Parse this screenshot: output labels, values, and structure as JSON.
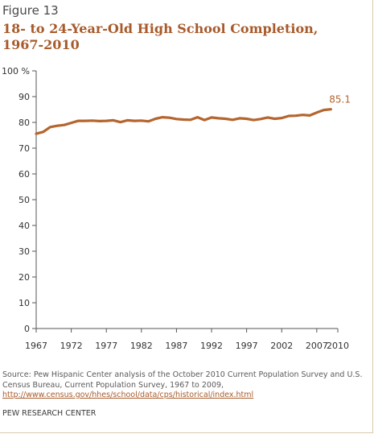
{
  "figure_label": "Figure 13",
  "title": "18- to 24-Year-Old High School Completion, 1967-2010",
  "chart_data": {
    "type": "line",
    "ylim": [
      0,
      100
    ],
    "y_ticks": [
      0,
      10,
      20,
      30,
      40,
      50,
      60,
      70,
      80,
      90,
      100
    ],
    "y_tick_labels": [
      "0",
      "10",
      "20",
      "30",
      "40",
      "50",
      "60",
      "70",
      "80",
      "90",
      "100 %"
    ],
    "x_tick_labels": [
      "1967",
      "1972",
      "1977",
      "1982",
      "1987",
      "1992",
      "1997",
      "2002",
      "2007",
      "2010"
    ],
    "x_tick_values": [
      1967,
      1972,
      1977,
      1982,
      1987,
      1992,
      1997,
      2002,
      2007,
      2010
    ],
    "xlim": [
      1967,
      2010
    ],
    "series": [
      {
        "color": "#b5652e",
        "x": [
          1967,
          1968,
          1969,
          1970,
          1971,
          1972,
          1973,
          1974,
          1975,
          1976,
          1977,
          1978,
          1979,
          1980,
          1981,
          1982,
          1983,
          1984,
          1985,
          1986,
          1987,
          1988,
          1989,
          1990,
          1991,
          1992,
          1993,
          1994,
          1995,
          1996,
          1997,
          1998,
          1999,
          2000,
          2001,
          2002,
          2003,
          2004,
          2005,
          2006,
          2007,
          2008,
          2009
        ],
        "values": [
          75.6,
          76.3,
          78.2,
          78.7,
          79.0,
          79.8,
          80.6,
          80.6,
          80.7,
          80.5,
          80.6,
          80.8,
          80.1,
          80.8,
          80.6,
          80.7,
          80.4,
          81.4,
          82.0,
          81.8,
          81.3,
          81.1,
          81.0,
          82.0,
          80.9,
          81.9,
          81.6,
          81.4,
          81.0,
          81.6,
          81.4,
          80.9,
          81.3,
          81.9,
          81.4,
          81.7,
          82.5,
          82.6,
          82.9,
          82.7,
          83.8,
          84.8,
          85.1
        ]
      }
    ],
    "annotations": [
      {
        "text": "85.1",
        "x": 2009,
        "y": 85.1
      }
    ],
    "grid": false
  },
  "footer": {
    "source_text": "Source: Pew Hispanic Center analysis of the October 2010 Current Population Survey and U.S. Census Bureau, Current Population Survey, 1967 to 2009,",
    "source_link": "http://www.census.gov/hhes/school/data/cps/historical/index.html",
    "organization": "PEW RESEARCH CENTER"
  },
  "colors": {
    "line": "#b5652e",
    "title": "#a85a2a",
    "axis": "#555555"
  }
}
